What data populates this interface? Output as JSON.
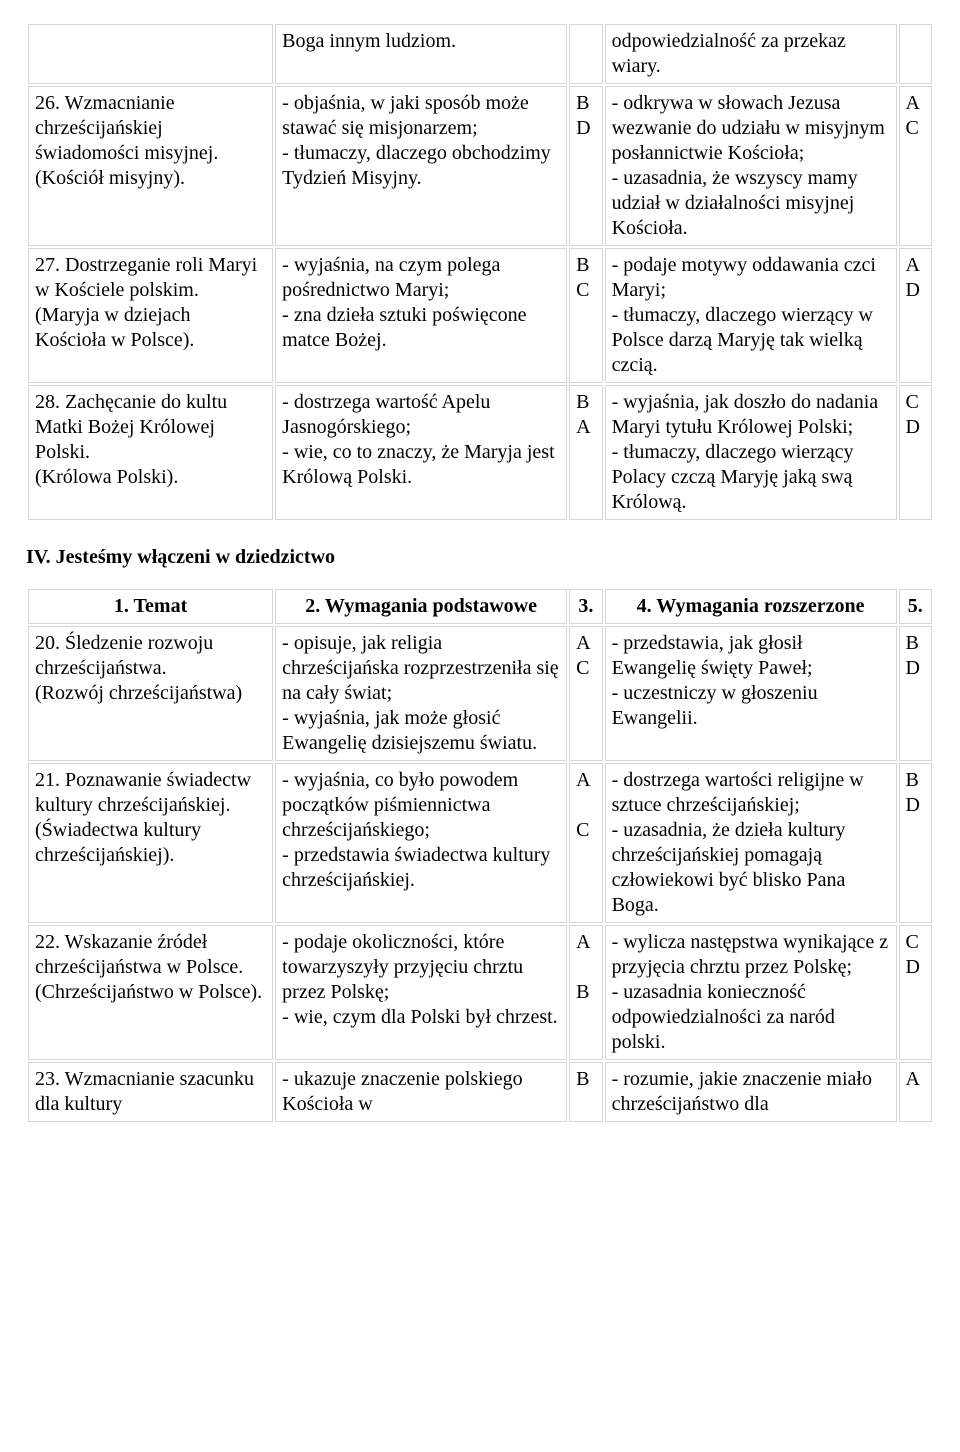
{
  "table1": {
    "rows": [
      {
        "c1": "",
        "c2": "Boga innym ludziom.",
        "c3": "",
        "c4": "odpowiedzialność za przekaz wiary.",
        "c5": ""
      },
      {
        "c1": "26. Wzmacnianie chrześcijańskiej świadomości misyjnej. (Kościół misyjny).",
        "c2": "- objaśnia, w jaki sposób może stawać się misjonarzem;\n- tłumaczy, dlaczego obchodzimy Tydzień Misyjny.",
        "c3": "B\nD",
        "c4": "- odkrywa w słowach Jezusa wezwanie do udziału w misyjnym posłannictwie Kościoła;\n- uzasadnia, że wszyscy mamy udział w działalności misyjnej Kościoła.",
        "c5": "A\nC"
      },
      {
        "c1": "27. Dostrzeganie roli Maryi w Kościele polskim.\n(Maryja w dziejach Kościoła w Polsce).",
        "c2": "- wyjaśnia, na czym polega pośrednictwo Maryi;\n- zna dzieła sztuki poświęcone matce Bożej.",
        "c3": "B\nC",
        "c4": "- podaje motywy oddawania czci Maryi;\n- tłumaczy, dlaczego wierzący w Polsce darzą Maryję tak wielką czcią.",
        "c5": "A\nD"
      },
      {
        "c1": "28. Zachęcanie do kultu Matki Bożej Królowej Polski.\n(Królowa Polski).",
        "c2": "- dostrzega wartość Apelu Jasnogórskiego;\n- wie, co to znaczy, że Maryja jest Królową Polski.",
        "c3": "B\nA",
        "c4": "- wyjaśnia, jak doszło do nadania Maryi tytułu Królowej Polski;\n- tłumaczy, dlaczego wierzący Polacy czczą Maryję jaką swą Królową.",
        "c5": "C\nD"
      }
    ]
  },
  "sectionTitle": "IV. Jesteśmy włączeni w dziedzictwo",
  "table2": {
    "headers": {
      "h1": "1. Temat",
      "h2": "2. Wymagania podstawowe",
      "h3": "3.",
      "h4": "4. Wymagania rozszerzone",
      "h5": "5."
    },
    "rows": [
      {
        "c1": "20. Śledzenie rozwoju chrześcijaństwa.\n(Rozwój chrześcijaństwa)",
        "c2": "- opisuje, jak religia chrześcijańska rozprzestrzeniła się na cały świat;\n- wyjaśnia, jak może głosić Ewangelię dzisiejszemu światu.",
        "c3": "A\nC",
        "c4": "- przedstawia, jak głosił Ewangelię święty Paweł;\n- uczestniczy w głoszeniu Ewangelii.",
        "c5": "B\nD"
      },
      {
        "c1": "21. Poznawanie świadectw kultury chrześcijańskiej.\n(Świadectwa kultury chrześcijańskiej).",
        "c2": "- wyjaśnia, co było powodem początków piśmiennictwa chrześcijańskiego;\n- przedstawia świadectwa kultury chrześcijańskiej.",
        "c3": "A\n\nC",
        "c4": "- dostrzega wartości religijne w sztuce chrześcijańskiej;\n- uzasadnia, że dzieła kultury chrześcijańskiej pomagają człowiekowi być blisko Pana Boga.",
        "c5": "B\nD"
      },
      {
        "c1": "22. Wskazanie źródeł chrześcijaństwa w Polsce.\n(Chrześcijaństwo w Polsce).",
        "c2": "- podaje okoliczności, które towarzyszyły przyjęciu chrztu przez Polskę;\n- wie, czym dla Polski był chrzest.",
        "c3": "A\n\nB",
        "c4": "- wylicza następstwa wynikające z przyjęcia chrztu przez Polskę;\n- uzasadnia konieczność odpowiedzialności za naród polski.",
        "c5": "C\nD"
      },
      {
        "c1": "23. Wzmacnianie szacunku dla kultury",
        "c2": "- ukazuje znaczenie polskiego Kościoła w",
        "c3": "B",
        "c4": "- rozumie, jakie znaczenie miało chrześcijaństwo dla",
        "c5": "A"
      }
    ]
  }
}
